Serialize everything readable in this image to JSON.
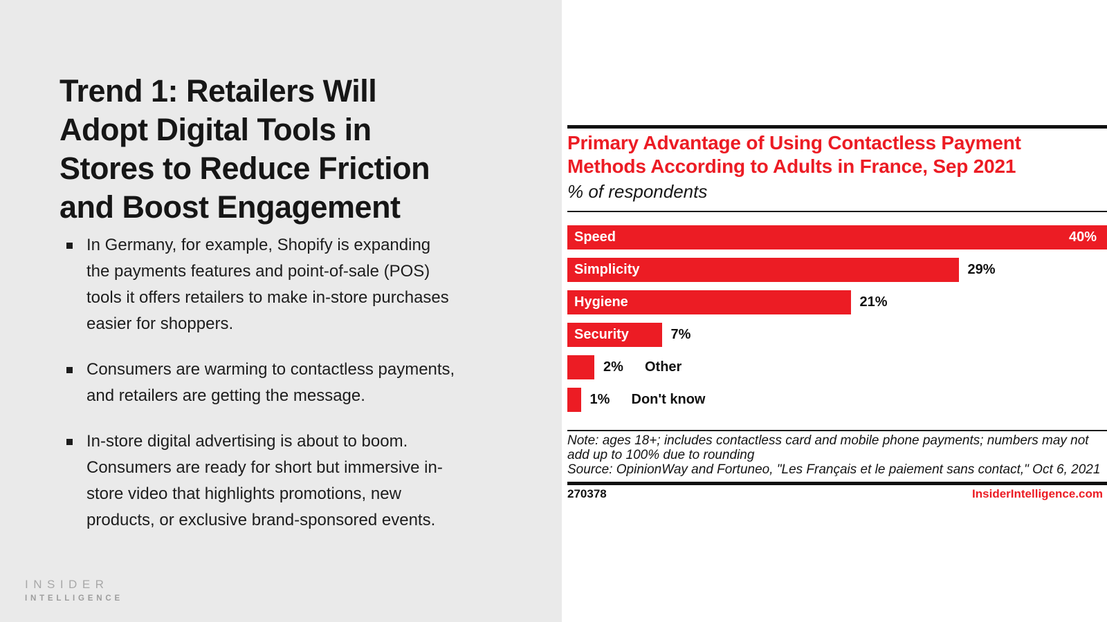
{
  "slide": {
    "title": "Trend 1: Retailers Will\nAdopt Digital Tools in\nStores to Reduce Friction\nand Boost Engagement",
    "bullets": [
      "In Germany, for example, Shopify is expanding\nthe payments features and point-of-sale (POS)\ntools it offers retailers to make in-store purchases\neasier for shoppers.",
      "Consumers are warming to contactless payments,\nand retailers are getting the message.",
      "In-store digital advertising is about to boom.\nConsumers are ready for short but immersive in-\nstore video that highlights promotions, new\nproducts, or exclusive brand-sponsored events."
    ],
    "logo": {
      "line1": "INSIDER",
      "line2": "INTELLIGENCE"
    }
  },
  "chart": {
    "title": "Primary Advantage of Using Contactless Payment\nMethods According to Adults in France, Sep 2021",
    "subtitle": "% of respondents",
    "note": "Note: ages 18+; includes contactless card and mobile phone payments; numbers may not\nadd up to 100% due to rounding",
    "source": "Source: OpinionWay and Fortuneo, \"Les Français et le paiement sans contact,\" Oct 6, 2021",
    "chart_id": "270378",
    "footer_link": "InsiderIntelligence.com"
  },
  "chart_data": {
    "type": "bar",
    "orientation": "horizontal",
    "title": "Primary Advantage of Using Contactless Payment Methods According to Adults in France, Sep 2021",
    "subtitle": "% of respondents",
    "categories": [
      "Speed",
      "Simplicity",
      "Hygiene",
      "Security",
      "Other",
      "Don't know"
    ],
    "values": [
      40,
      29,
      21,
      7,
      2,
      1
    ],
    "value_suffix": "%",
    "xlim": [
      0,
      40
    ],
    "grid": false,
    "legend": false,
    "bar_color": "#EC1C24",
    "label_inside_min_value": 5,
    "value_inside_min_value": 35
  },
  "colors": {
    "accent_red": "#EC1C24",
    "panel_gray": "#EAEAEA",
    "text_black": "#161616",
    "logo_gray": "#A8A8A8"
  }
}
